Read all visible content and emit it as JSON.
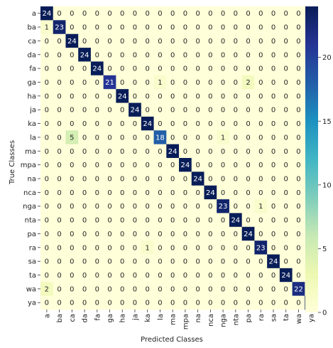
{
  "chart_data": {
    "type": "heatmap",
    "xlabel": "Predicted Classes",
    "ylabel": "True Classes",
    "x_categories": [
      "a",
      "ba",
      "ca",
      "da",
      "fa",
      "ga",
      "ha",
      "ja",
      "ka",
      "la",
      "ma",
      "mpa",
      "na",
      "nca",
      "nga",
      "nta",
      "pa",
      "ra",
      "sa",
      "ta",
      "wa",
      "ya"
    ],
    "y_categories": [
      "a",
      "ba",
      "ca",
      "da",
      "fa",
      "ga",
      "ha",
      "ja",
      "ka",
      "la",
      "ma",
      "mpa",
      "na",
      "nca",
      "nga",
      "nta",
      "pa",
      "ra",
      "sa",
      "ta",
      "wa",
      "ya"
    ],
    "matrix": [
      [
        24,
        0,
        0,
        0,
        0,
        0,
        0,
        0,
        0,
        0,
        0,
        0,
        0,
        0,
        0,
        0,
        0,
        0,
        0,
        0,
        0,
        0
      ],
      [
        1,
        23,
        0,
        0,
        0,
        0,
        0,
        0,
        0,
        0,
        0,
        0,
        0,
        0,
        0,
        0,
        0,
        0,
        0,
        0,
        0,
        0
      ],
      [
        0,
        0,
        24,
        0,
        0,
        0,
        0,
        0,
        0,
        0,
        0,
        0,
        0,
        0,
        0,
        0,
        0,
        0,
        0,
        0,
        0,
        0
      ],
      [
        0,
        0,
        0,
        24,
        0,
        0,
        0,
        0,
        0,
        0,
        0,
        0,
        0,
        0,
        0,
        0,
        0,
        0,
        0,
        0,
        0,
        0
      ],
      [
        0,
        0,
        0,
        0,
        24,
        0,
        0,
        0,
        0,
        0,
        0,
        0,
        0,
        0,
        0,
        0,
        0,
        0,
        0,
        0,
        0,
        0
      ],
      [
        0,
        0,
        0,
        0,
        0,
        21,
        0,
        0,
        0,
        1,
        0,
        0,
        0,
        0,
        0,
        0,
        2,
        0,
        0,
        0,
        0,
        0
      ],
      [
        0,
        0,
        0,
        0,
        0,
        0,
        24,
        0,
        0,
        0,
        0,
        0,
        0,
        0,
        0,
        0,
        0,
        0,
        0,
        0,
        0,
        0
      ],
      [
        0,
        0,
        0,
        0,
        0,
        0,
        0,
        24,
        0,
        0,
        0,
        0,
        0,
        0,
        0,
        0,
        0,
        0,
        0,
        0,
        0,
        0
      ],
      [
        0,
        0,
        0,
        0,
        0,
        0,
        0,
        0,
        24,
        0,
        0,
        0,
        0,
        0,
        0,
        0,
        0,
        0,
        0,
        0,
        0,
        0
      ],
      [
        0,
        0,
        5,
        0,
        0,
        0,
        0,
        0,
        0,
        18,
        0,
        0,
        0,
        0,
        1,
        0,
        0,
        0,
        0,
        0,
        0,
        0
      ],
      [
        0,
        0,
        0,
        0,
        0,
        0,
        0,
        0,
        0,
        0,
        24,
        0,
        0,
        0,
        0,
        0,
        0,
        0,
        0,
        0,
        0,
        0
      ],
      [
        0,
        0,
        0,
        0,
        0,
        0,
        0,
        0,
        0,
        0,
        0,
        24,
        0,
        0,
        0,
        0,
        0,
        0,
        0,
        0,
        0,
        0
      ],
      [
        0,
        0,
        0,
        0,
        0,
        0,
        0,
        0,
        0,
        0,
        0,
        0,
        24,
        0,
        0,
        0,
        0,
        0,
        0,
        0,
        0,
        0
      ],
      [
        0,
        0,
        0,
        0,
        0,
        0,
        0,
        0,
        0,
        0,
        0,
        0,
        0,
        24,
        0,
        0,
        0,
        0,
        0,
        0,
        0,
        0
      ],
      [
        0,
        0,
        0,
        0,
        0,
        0,
        0,
        0,
        0,
        0,
        0,
        0,
        0,
        0,
        23,
        0,
        0,
        1,
        0,
        0,
        0,
        0
      ],
      [
        0,
        0,
        0,
        0,
        0,
        0,
        0,
        0,
        0,
        0,
        0,
        0,
        0,
        0,
        0,
        24,
        0,
        0,
        0,
        0,
        0,
        0
      ],
      [
        0,
        0,
        0,
        0,
        0,
        0,
        0,
        0,
        0,
        0,
        0,
        0,
        0,
        0,
        0,
        0,
        24,
        0,
        0,
        0,
        0,
        0
      ],
      [
        0,
        0,
        0,
        0,
        0,
        0,
        0,
        0,
        1,
        0,
        0,
        0,
        0,
        0,
        0,
        0,
        0,
        23,
        0,
        0,
        0,
        0
      ],
      [
        0,
        0,
        0,
        0,
        0,
        0,
        0,
        0,
        0,
        0,
        0,
        0,
        0,
        0,
        0,
        0,
        0,
        0,
        24,
        0,
        0,
        0
      ],
      [
        0,
        0,
        0,
        0,
        0,
        0,
        0,
        0,
        0,
        0,
        0,
        0,
        0,
        0,
        0,
        0,
        0,
        0,
        0,
        24,
        0,
        0
      ],
      [
        2,
        0,
        0,
        0,
        0,
        0,
        0,
        0,
        0,
        0,
        0,
        0,
        0,
        0,
        0,
        0,
        0,
        0,
        0,
        0,
        22,
        0
      ],
      [
        0,
        0,
        0,
        0,
        0,
        0,
        0,
        0,
        0,
        0,
        0,
        0,
        0,
        0,
        0,
        0,
        0,
        0,
        0,
        0,
        0,
        24
      ]
    ],
    "colorbar": {
      "range": [
        0,
        24
      ],
      "ticks": [
        0,
        5,
        10,
        15,
        20
      ],
      "colormap": "YlGnBu",
      "stops": [
        "#ffffd9",
        "#edf8b1",
        "#c7e9b4",
        "#7fcdbb",
        "#41b6c4",
        "#1d91c0",
        "#225ea8",
        "#253494",
        "#081d58"
      ]
    },
    "annotation_dark_color": "#262626",
    "annotation_light_color": "#ffffff",
    "grid": false
  }
}
